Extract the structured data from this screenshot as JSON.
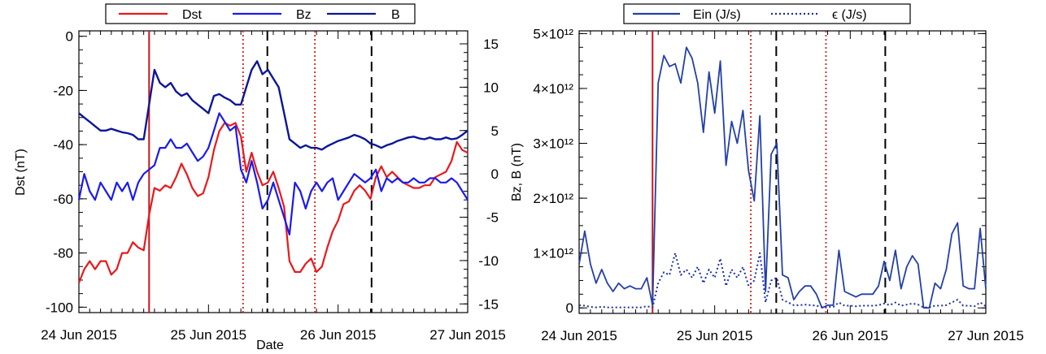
{
  "chart_data": [
    {
      "type": "line",
      "xlabel": "Date",
      "ylabel": "Dst (nT)",
      "y2label": "Bz, B (nT)",
      "xticks": [
        "24 Jun 2015",
        "25 Jun 2015",
        "26 Jun 2015",
        "27 Jun 2015"
      ],
      "xlim": [
        0,
        72
      ],
      "ylim": [
        -102,
        2
      ],
      "yticks": [
        "0",
        "-20",
        "-40",
        "-60",
        "-80",
        "-100"
      ],
      "ytick_values": [
        0,
        -20,
        -40,
        -60,
        -80,
        -100
      ],
      "y2lim": [
        -16,
        16.5
      ],
      "y2ticks": [
        "15",
        "10",
        "5",
        "0",
        "-5",
        "-10",
        "-15"
      ],
      "y2tick_values": [
        15,
        10,
        5,
        0,
        -5,
        -10,
        -15
      ],
      "legend": [
        "Dst",
        "Bz",
        "B"
      ],
      "colors": {
        "Dst": "#e8191c",
        "Bz": "#1a1aef",
        "B": "#0d1696",
        "dashed": "#000000"
      },
      "vertical_lines": {
        "solid_red": [
          13.0
        ],
        "dotted_red": [
          30.4,
          43.7
        ],
        "dashed_black": [
          34.9,
          54.2
        ]
      },
      "series": [
        {
          "name": "Dst",
          "axis": "left",
          "x": [
            0,
            1,
            2,
            3,
            4,
            5,
            6,
            7,
            8,
            9,
            10,
            11,
            12,
            13,
            14,
            15,
            16,
            17,
            18,
            19,
            20,
            21,
            22,
            23,
            24,
            25,
            26,
            27,
            28,
            29,
            30,
            31,
            32,
            33,
            34,
            35,
            36,
            37,
            38,
            39,
            40,
            41,
            42,
            43,
            44,
            45,
            46,
            47,
            48,
            49,
            50,
            51,
            52,
            53,
            54,
            55,
            56,
            57,
            58,
            59,
            60,
            61,
            62,
            63,
            64,
            65,
            66,
            67,
            68,
            69,
            70,
            71,
            72
          ],
          "values": [
            -91,
            -86,
            -83,
            -86,
            -83,
            -83,
            -88,
            -86,
            -80,
            -80,
            -76,
            -78,
            -79,
            -66,
            -56,
            -57,
            -55,
            -56,
            -52,
            -47,
            -51,
            -56,
            -59,
            -58,
            -52,
            -42,
            -35,
            -32,
            -33,
            -32,
            -37,
            -50,
            -43,
            -50,
            -55,
            -54,
            -50,
            -56,
            -63,
            -83,
            -87,
            -87,
            -84,
            -82,
            -87,
            -85,
            -78,
            -72,
            -68,
            -62,
            -61,
            -57,
            -55,
            -57,
            -60,
            -52,
            -48,
            -52,
            -50,
            -52,
            -54,
            -55,
            -56,
            -56,
            -55,
            -55,
            -52,
            -51,
            -50,
            -46,
            -39,
            -42,
            -43
          ]
        },
        {
          "name": "Bz",
          "axis": "right",
          "x": [
            0,
            1,
            2,
            3,
            4,
            5,
            6,
            7,
            8,
            9,
            10,
            11,
            12,
            13,
            14,
            15,
            16,
            17,
            18,
            19,
            20,
            21,
            22,
            23,
            24,
            25,
            26,
            27,
            28,
            29,
            30,
            31,
            32,
            33,
            34,
            35,
            36,
            37,
            38,
            39,
            40,
            41,
            42,
            43,
            44,
            45,
            46,
            47,
            48,
            49,
            50,
            51,
            52,
            53,
            54,
            55,
            56,
            57,
            58,
            59,
            60,
            61,
            62,
            63,
            64,
            65,
            66,
            67,
            68,
            69,
            70,
            71,
            72
          ],
          "values": [
            -3,
            0,
            -2,
            -3,
            -1,
            -2,
            -3,
            -1,
            -2,
            -1,
            -3,
            -1,
            0,
            0.5,
            1,
            3,
            3,
            4,
            3,
            3,
            3.5,
            2.5,
            1.5,
            2,
            3,
            5,
            7,
            6,
            5,
            5.5,
            0.5,
            -1,
            1.5,
            -1,
            -4,
            -3,
            -1,
            -3,
            -5,
            -7,
            -1,
            -2,
            -4,
            -2,
            -1,
            -2,
            -1,
            -0.5,
            -3,
            -2,
            -1,
            0,
            -0.5,
            -1,
            -0.5,
            0.5,
            -2,
            -0.5,
            -1,
            -0.5,
            -1,
            -1,
            -0.5,
            -1,
            -1,
            -0.5,
            -0.5,
            -1,
            -1,
            -0.5,
            -1,
            -2,
            -3
          ]
        },
        {
          "name": "B",
          "axis": "right",
          "x": [
            0,
            1,
            2,
            3,
            4,
            5,
            6,
            7,
            8,
            9,
            10,
            11,
            12,
            13,
            14,
            15,
            16,
            17,
            18,
            19,
            20,
            21,
            22,
            23,
            24,
            25,
            26,
            27,
            28,
            29,
            30,
            31,
            32,
            33,
            34,
            35,
            36,
            37,
            38,
            39,
            40,
            41,
            42,
            43,
            44,
            45,
            46,
            47,
            48,
            49,
            50,
            51,
            52,
            53,
            54,
            55,
            56,
            57,
            58,
            59,
            60,
            61,
            62,
            63,
            64,
            65,
            66,
            67,
            68,
            69,
            70,
            71,
            72
          ],
          "values": [
            7,
            6.5,
            6,
            5.5,
            5,
            5,
            5.2,
            5,
            4.8,
            4.7,
            4.5,
            4,
            4,
            8,
            12,
            10.5,
            10,
            10.5,
            9.5,
            9,
            9.3,
            8.5,
            8,
            7.5,
            7,
            9,
            9.2,
            8.8,
            8.5,
            8,
            8,
            10,
            12,
            13,
            11.5,
            12,
            11,
            10,
            7,
            4,
            3.5,
            3,
            3.3,
            3,
            3,
            2.8,
            3.2,
            3.5,
            3.8,
            4,
            4.2,
            4.5,
            4.3,
            4,
            3.5,
            3.3,
            3,
            3.3,
            3.5,
            3.8,
            4,
            4.2,
            4.3,
            4.1,
            4,
            4.2,
            4,
            4,
            4.2,
            4,
            4.1,
            4.5,
            5
          ]
        }
      ]
    },
    {
      "type": "line",
      "xticks": [
        "24 Jun 2015",
        "25 Jun 2015",
        "26 Jun 2015",
        "27 Jun 2015"
      ],
      "xlim": [
        0,
        72
      ],
      "ylim": [
        -0.1,
        5.05
      ],
      "yticks": [
        "0",
        "1×10¹²",
        "2×10¹²",
        "3×10¹²",
        "4×10¹²",
        "5×10¹²"
      ],
      "ytick_values": [
        0,
        1,
        2,
        3,
        4,
        5
      ],
      "legend": [
        "Ein (J/s)",
        "ϵ (J/s)"
      ],
      "colors": {
        "Ein": "#2340a8",
        "epsilon": "#1c2fa8",
        "dashed": "#000000",
        "solid_red": "#c01010",
        "dotted_red": "#d02020"
      },
      "vertical_lines": {
        "solid_red": [
          13.0
        ],
        "dotted_red": [
          30.4,
          43.7
        ],
        "dashed_black": [
          34.9,
          54.2
        ]
      },
      "series": [
        {
          "name": "Ein (J/s)",
          "x": [
            0,
            1,
            2,
            3,
            4,
            5,
            6,
            7,
            8,
            9,
            10,
            11,
            12,
            13,
            14,
            15,
            16,
            17,
            18,
            19,
            20,
            21,
            22,
            23,
            24,
            25,
            26,
            27,
            28,
            29,
            30,
            31,
            32,
            33,
            34,
            35,
            36,
            37,
            38,
            39,
            40,
            41,
            42,
            43,
            44,
            45,
            46,
            47,
            48,
            49,
            50,
            51,
            52,
            53,
            54,
            55,
            56,
            57,
            58,
            59,
            60,
            61,
            62,
            63,
            64,
            65,
            66,
            67,
            68,
            69,
            70,
            71,
            72
          ],
          "values": [
            0.8,
            1.4,
            0.8,
            0.45,
            0.7,
            0.45,
            0.3,
            0.45,
            0.35,
            0.4,
            0.35,
            0.35,
            0.55,
            0.05,
            4.1,
            4.6,
            4.4,
            4.45,
            4.1,
            4.75,
            4.55,
            4.1,
            3.2,
            4.3,
            3.55,
            4.5,
            2.6,
            3.4,
            3.0,
            3.6,
            2.5,
            1.95,
            3.5,
            0.3,
            2.8,
            3.0,
            0.6,
            0.55,
            0.15,
            0.3,
            0.4,
            0.4,
            0.25,
            0.0,
            0.05,
            0.05,
            1.05,
            0.3,
            0.25,
            0.2,
            0.25,
            0.25,
            0.25,
            0.4,
            0.85,
            0.5,
            1.05,
            0.35,
            0.75,
            0.95,
            0.8,
            0.0,
            0.0,
            0.45,
            0.35,
            0.7,
            1.35,
            1.55,
            0.4,
            0.35,
            0.35,
            1.45,
            0.35
          ]
        },
        {
          "name": "ϵ (J/s)",
          "x": [
            0,
            1,
            2,
            3,
            4,
            5,
            6,
            7,
            8,
            9,
            10,
            11,
            12,
            13,
            14,
            15,
            16,
            17,
            18,
            19,
            20,
            21,
            22,
            23,
            24,
            25,
            26,
            27,
            28,
            29,
            30,
            31,
            32,
            33,
            34,
            35,
            36,
            37,
            38,
            39,
            40,
            41,
            42,
            43,
            44,
            45,
            46,
            47,
            48,
            49,
            50,
            51,
            52,
            53,
            54,
            55,
            56,
            57,
            58,
            59,
            60,
            61,
            62,
            63,
            64,
            65,
            66,
            67,
            68,
            69,
            70,
            71,
            72
          ],
          "values": [
            0.05,
            0.04,
            0.02,
            0.01,
            0.02,
            0.01,
            0.01,
            0.01,
            0.01,
            0.01,
            0.01,
            0.01,
            0.03,
            0.01,
            0.45,
            0.65,
            0.6,
            1.0,
            0.6,
            0.7,
            0.55,
            0.75,
            0.45,
            0.7,
            0.55,
            0.9,
            0.4,
            0.7,
            0.55,
            0.75,
            0.4,
            0.5,
            1.0,
            0.1,
            0.5,
            0.55,
            0.15,
            0.1,
            0.05,
            0.05,
            0.06,
            0.05,
            0.04,
            0.02,
            0.02,
            0.02,
            0.1,
            0.04,
            0.04,
            0.03,
            0.04,
            0.04,
            0.04,
            0.05,
            0.08,
            0.05,
            0.1,
            0.04,
            0.06,
            0.08,
            0.06,
            0.01,
            0.01,
            0.04,
            0.04,
            0.05,
            0.1,
            0.15,
            0.04,
            0.04,
            0.03,
            0.1,
            0.03
          ]
        }
      ]
    }
  ]
}
